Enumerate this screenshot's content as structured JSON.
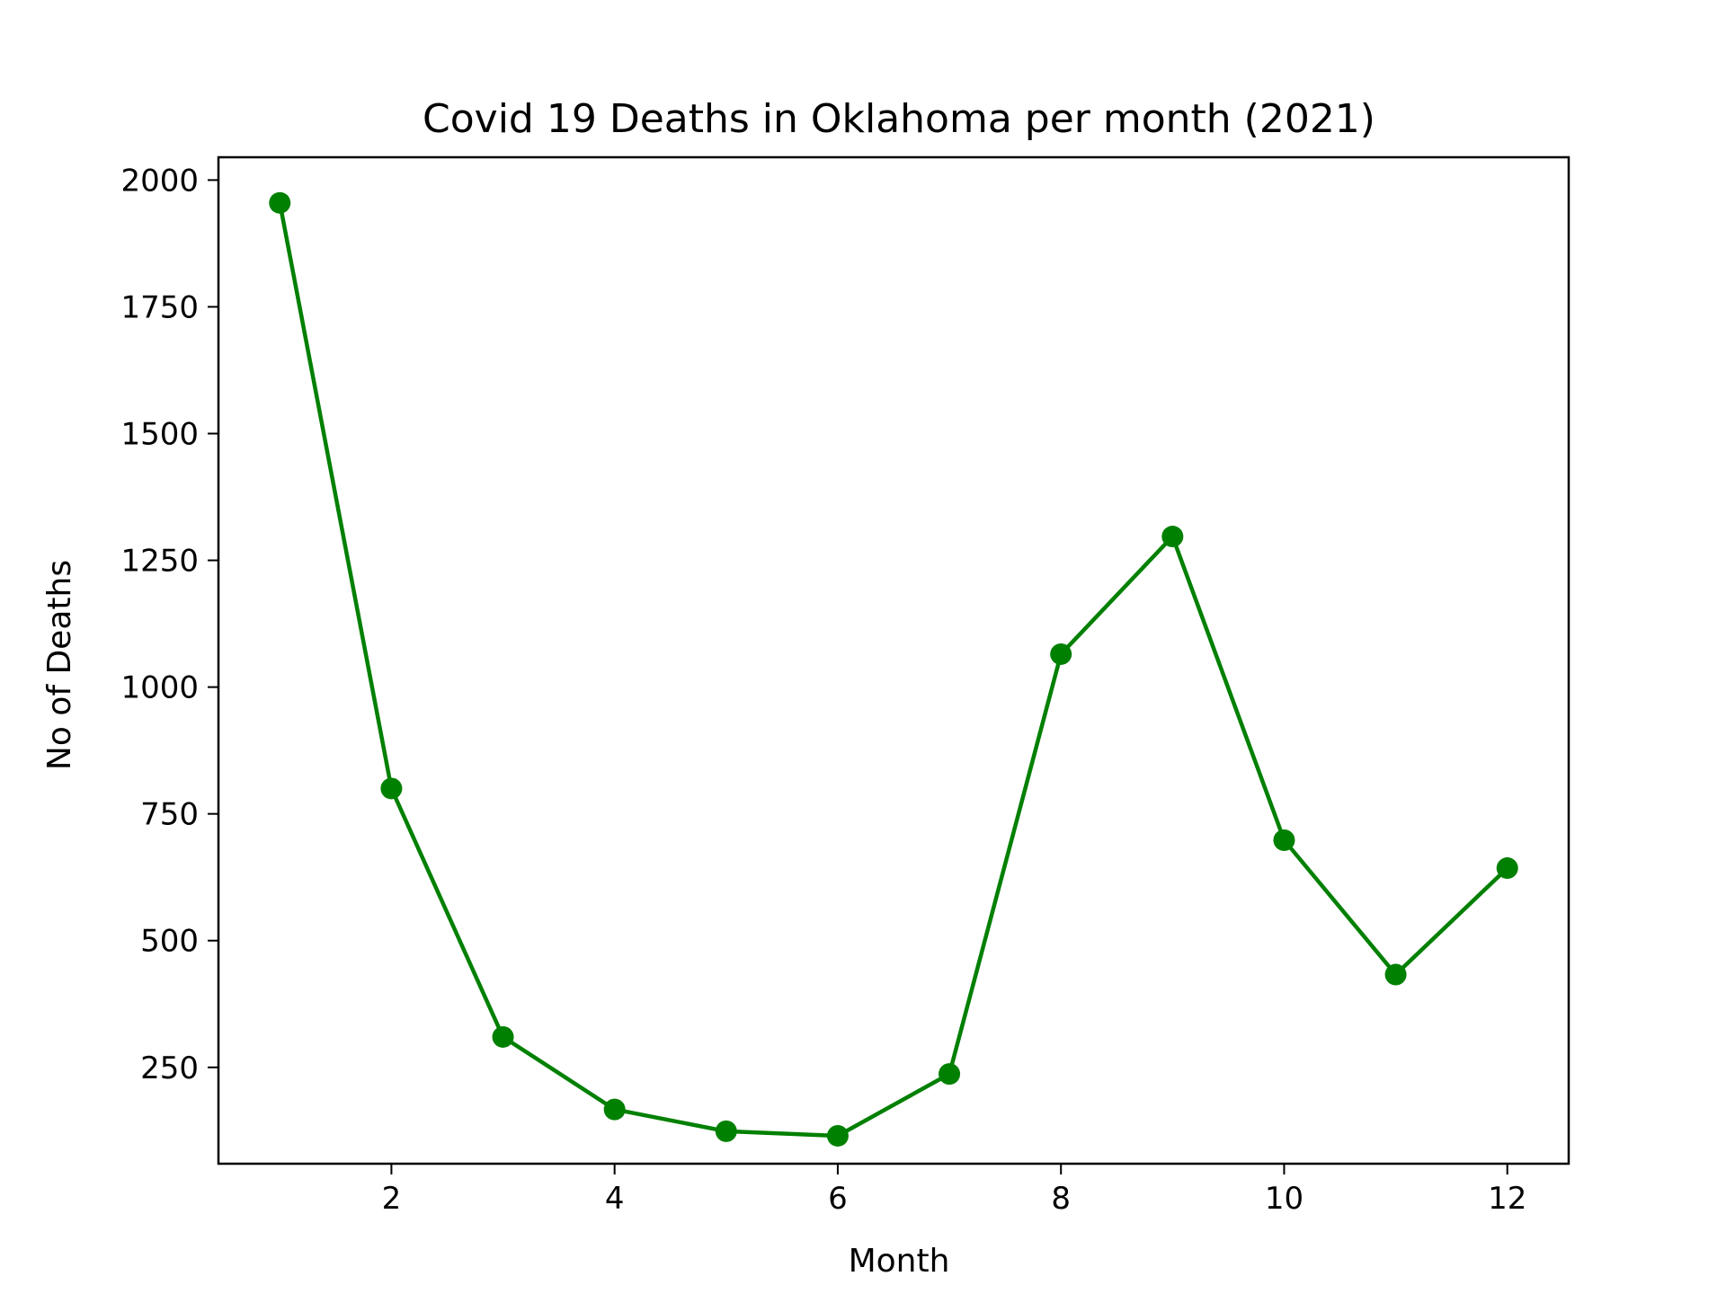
{
  "chart_data": {
    "type": "line",
    "title": "Covid 19 Deaths in Oklahoma per month (2021)",
    "xlabel": "Month",
    "ylabel": "No of Deaths",
    "xlim": [
      0.45,
      12.55
    ],
    "ylim": [
      60,
      2045
    ],
    "x_ticks": [
      2,
      4,
      6,
      8,
      10,
      12
    ],
    "y_ticks": [
      250,
      500,
      750,
      1000,
      1250,
      1500,
      1750,
      2000
    ],
    "grid": false,
    "legend": "none",
    "series": [
      {
        "color": "#008000",
        "marker": "circle",
        "x": [
          1,
          2,
          3,
          4,
          5,
          6,
          7,
          8,
          9,
          10,
          11,
          12
        ],
        "y": [
          1955,
          800,
          310,
          167,
          124,
          115,
          237,
          1065,
          1297,
          698,
          433,
          643
        ]
      }
    ]
  }
}
